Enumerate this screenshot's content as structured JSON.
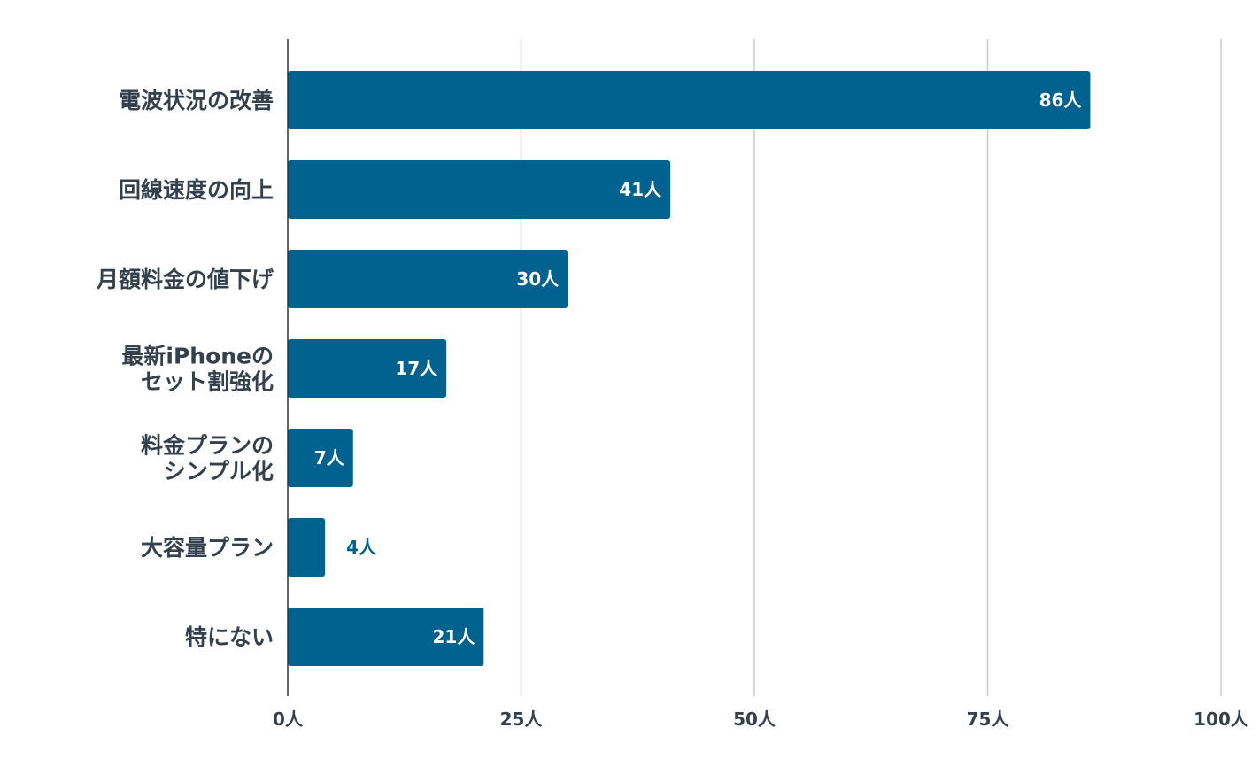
{
  "chart_data": {
    "type": "bar",
    "orientation": "horizontal",
    "categories": [
      [
        "電波状況の改善"
      ],
      [
        "回線速度の向上"
      ],
      [
        "月額料金の値下げ"
      ],
      [
        "最新iPhoneの",
        "セット割強化"
      ],
      [
        "料金プランの",
        "シンプル化"
      ],
      [
        "大容量プラン"
      ],
      [
        "特にない"
      ]
    ],
    "values": [
      86,
      41,
      30,
      17,
      7,
      4,
      21
    ],
    "value_labels": [
      "86人",
      "41人",
      "30人",
      "17人",
      "7人",
      "4人",
      "21人"
    ],
    "xticks": [
      0,
      25,
      50,
      75,
      100
    ],
    "xtick_labels": [
      "0人",
      "25人",
      "50人",
      "75人",
      "100人"
    ],
    "xlim": [
      0,
      100
    ],
    "grid": "vertical",
    "bar_color": "#02628f",
    "label_inside_color": "#ffffff",
    "label_outside_color": "#02628f",
    "grid_color": "#cccccc",
    "axis_color": "#333333",
    "text_color": "#33414e"
  }
}
